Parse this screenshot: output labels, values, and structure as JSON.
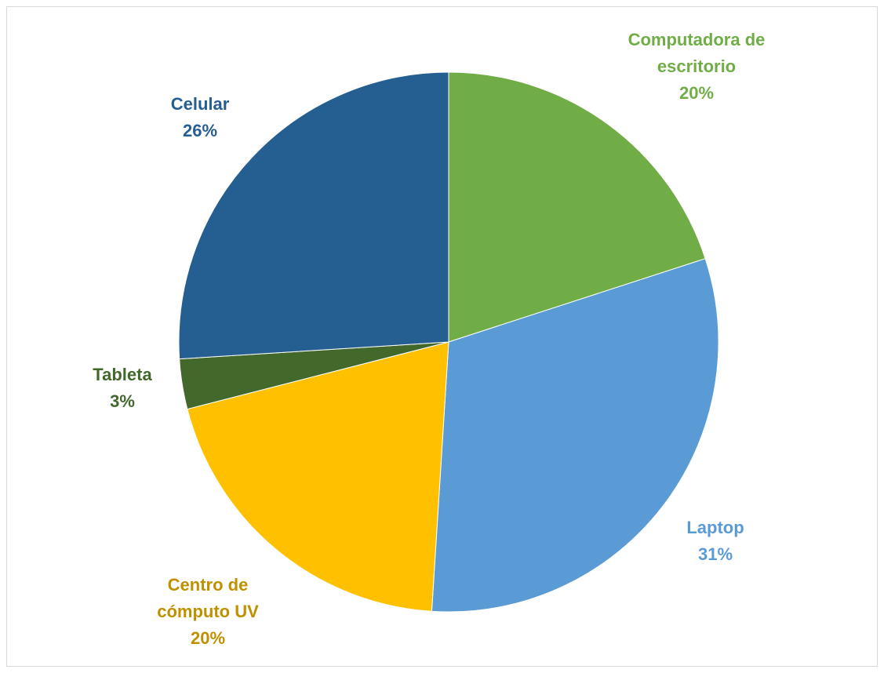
{
  "chart_data": {
    "type": "pie",
    "categories": [
      "Computadora de escritorio",
      "Laptop",
      "Centro de cómputo UV",
      "Tableta",
      "Celular"
    ],
    "values": [
      20,
      31,
      20,
      3,
      26
    ],
    "value_labels": [
      "20%",
      "31%",
      "20%",
      "3%",
      "26%"
    ],
    "colors": [
      "#70ad47",
      "#5b9bd5",
      "#ffc000",
      "#43682b",
      "#255e91"
    ],
    "label_colors": [
      "#70ad47",
      "#5b9bd5",
      "#bf9000",
      "#43682b",
      "#255e91"
    ]
  }
}
